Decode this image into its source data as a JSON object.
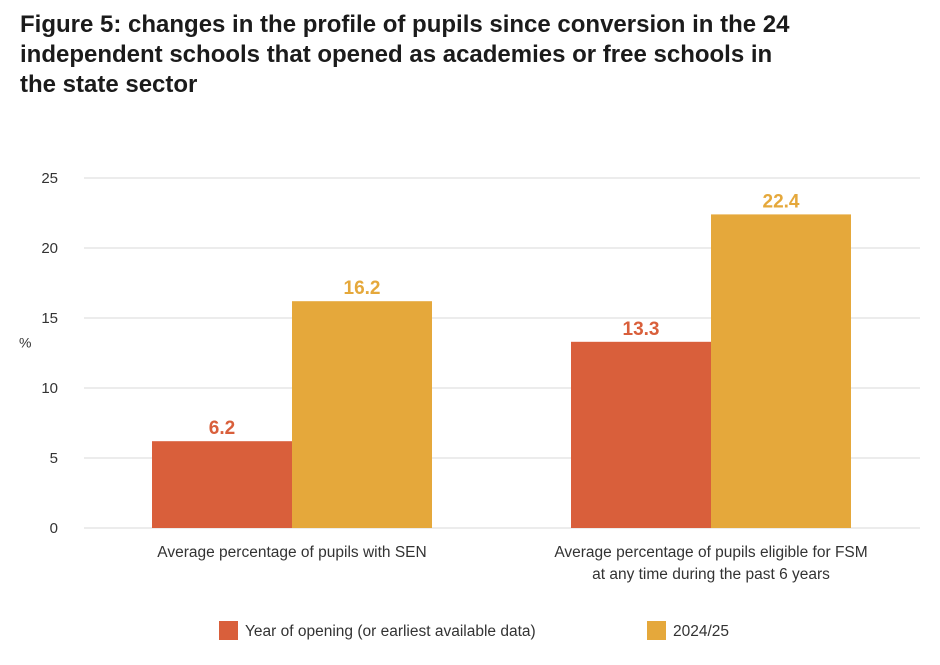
{
  "chart_data": {
    "type": "bar",
    "title": "Figure 5: changes in the profile of pupils since conversion in the 24 independent schools that opened as academies or free schools in the state sector",
    "title_lines": [
      "Figure 5: changes in the profile of pupils since conversion in the 24",
      "independent schools that opened as academies or free schools in",
      "the state sector"
    ],
    "ylabel": "%",
    "xlabel": "",
    "ylim": [
      0,
      25
    ],
    "yticks": [
      0,
      5,
      10,
      15,
      20,
      25
    ],
    "grid": true,
    "legend_position": "bottom",
    "categories": [
      "Average percentage of pupils with SEN",
      "Average percentage of pupils eligible for FSM at any time during the past 6 years"
    ],
    "category_lines": [
      [
        "Average percentage of pupils with SEN"
      ],
      [
        "Average percentage of pupils eligible for FSM",
        "at any time during the past 6 years"
      ]
    ],
    "series": [
      {
        "name": "Year of opening (or earliest available data)",
        "color": "#d95f3b",
        "values": [
          6.2,
          13.3
        ],
        "labels": [
          "6.2",
          "13.3"
        ]
      },
      {
        "name": "2024/25",
        "color": "#e5a83b",
        "values": [
          16.2,
          22.4
        ],
        "labels": [
          "16.2",
          "22.4"
        ]
      }
    ]
  }
}
